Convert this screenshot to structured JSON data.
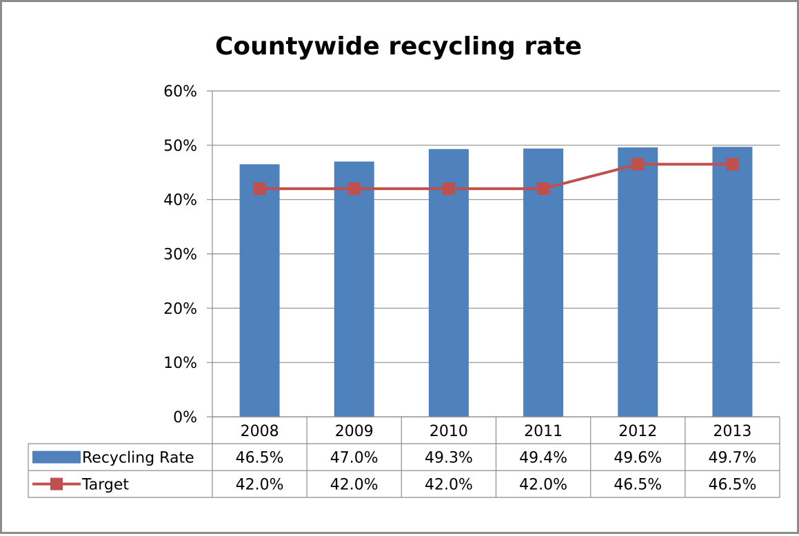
{
  "chart_data": {
    "type": "bar",
    "title": "Countywide recycling rate",
    "categories": [
      "2008",
      "2009",
      "2010",
      "2011",
      "2012",
      "2013"
    ],
    "ylim": [
      0,
      60
    ],
    "y_ticks": [
      "0%",
      "10%",
      "20%",
      "30%",
      "40%",
      "50%",
      "60%"
    ],
    "y_tick_values": [
      0,
      10,
      20,
      30,
      40,
      50,
      60
    ],
    "grid": true,
    "legend": "data-table",
    "series": [
      {
        "name": "Recycling Rate",
        "kind": "bar",
        "color": "#4f81bd",
        "values": [
          46.5,
          47.0,
          49.3,
          49.4,
          49.6,
          49.7
        ],
        "labels": [
          "46.5%",
          "47.0%",
          "49.3%",
          "49.4%",
          "49.6%",
          "49.7%"
        ]
      },
      {
        "name": "Target",
        "kind": "line",
        "color": "#c0504d",
        "values": [
          42.0,
          42.0,
          42.0,
          42.0,
          46.5,
          46.5
        ],
        "labels": [
          "42.0%",
          "42.0%",
          "42.0%",
          "42.0%",
          "46.5%",
          "46.5%"
        ]
      }
    ]
  }
}
